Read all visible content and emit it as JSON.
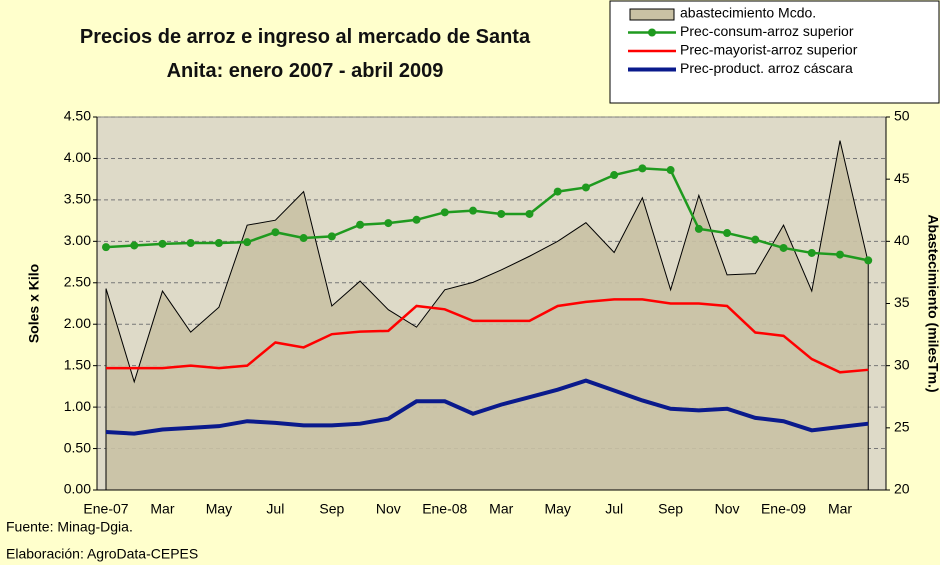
{
  "chart_data": {
    "type": "combo",
    "title": "Precios de arroz e ingreso al mercado de Santa Anita: enero 2007 - abril 2009",
    "y_label": "Soles x Kilo",
    "y2_label": "Abastecimiento (milesTm.)",
    "notes": [
      "Fuente: Minag-Dgia.",
      "Elaboración: AgroData-CEPES"
    ],
    "legend_position": "top right",
    "grid": true,
    "categories": [
      "Ene-07",
      null,
      "Mar",
      null,
      "May",
      null,
      "Jul",
      null,
      "Sep",
      null,
      "Nov",
      null,
      "Ene-08",
      null,
      "Mar",
      null,
      "May",
      null,
      "Jul",
      null,
      "Sep",
      null,
      "Nov",
      null,
      "Ene-09",
      null,
      "Mar",
      null
    ],
    "ylim": [
      0,
      4.5
    ],
    "yticks": [
      {
        "value": 0,
        "label": "0.00"
      },
      {
        "value": 0.5,
        "label": "0.50"
      },
      {
        "value": 1,
        "label": "1.00"
      },
      {
        "value": 1.5,
        "label": "1.50"
      },
      {
        "value": 2,
        "label": "2.00"
      },
      {
        "value": 2.5,
        "label": "2.50"
      },
      {
        "value": 3,
        "label": "3.00"
      },
      {
        "value": 3.5,
        "label": "3.50"
      },
      {
        "value": 4,
        "label": "4.00"
      },
      {
        "value": 4.5,
        "label": "4.50"
      }
    ],
    "y2lim": [
      20,
      50
    ],
    "y2ticks": [
      20,
      25,
      30,
      35,
      40,
      45,
      50
    ],
    "series": [
      {
        "name": "abastecimiento Mcdo.",
        "kind": "area",
        "axis": "y2",
        "color": "#c9c1a4",
        "values": [
          36.2,
          28.7,
          36.0,
          32.7,
          34.7,
          41.3,
          41.7,
          44.0,
          34.8,
          36.8,
          34.5,
          33.1,
          36.1,
          36.7,
          37.7,
          38.8,
          40.0,
          41.5,
          39.1,
          43.5,
          36.1,
          43.7,
          37.3,
          37.4,
          41.3,
          36.0,
          48.1,
          38.3
        ]
      },
      {
        "name": "Prec-consum-arroz superior",
        "kind": "line",
        "marker": true,
        "color": "#1f9a1f",
        "values": [
          2.93,
          2.95,
          2.97,
          2.98,
          2.98,
          2.99,
          3.11,
          3.04,
          3.06,
          3.2,
          3.22,
          3.26,
          3.35,
          3.37,
          3.33,
          3.33,
          3.6,
          3.65,
          3.8,
          3.88,
          3.86,
          3.15,
          3.1,
          3.02,
          2.92,
          2.86,
          2.84,
          2.77
        ]
      },
      {
        "name": "Prec-mayorist-arroz superior",
        "kind": "line",
        "marker": false,
        "color": "#ff0000",
        "values": [
          1.47,
          1.47,
          1.47,
          1.5,
          1.47,
          1.5,
          1.78,
          1.72,
          1.88,
          1.91,
          1.92,
          2.22,
          2.18,
          2.04,
          2.04,
          2.04,
          2.22,
          2.27,
          2.3,
          2.3,
          2.25,
          2.25,
          2.22,
          1.9,
          1.86,
          1.58,
          1.42,
          1.45
        ]
      },
      {
        "name": "Prec-product. arroz cáscara",
        "kind": "line",
        "marker": false,
        "color": "#0a1a8c",
        "width": 4,
        "values": [
          0.7,
          0.68,
          0.73,
          0.75,
          0.77,
          0.83,
          0.81,
          0.78,
          0.78,
          0.8,
          0.86,
          1.07,
          1.07,
          0.92,
          1.03,
          1.12,
          1.21,
          1.32,
          1.2,
          1.08,
          0.98,
          0.96,
          0.98,
          0.87,
          0.83,
          0.72,
          0.76,
          0.8
        ]
      }
    ]
  }
}
